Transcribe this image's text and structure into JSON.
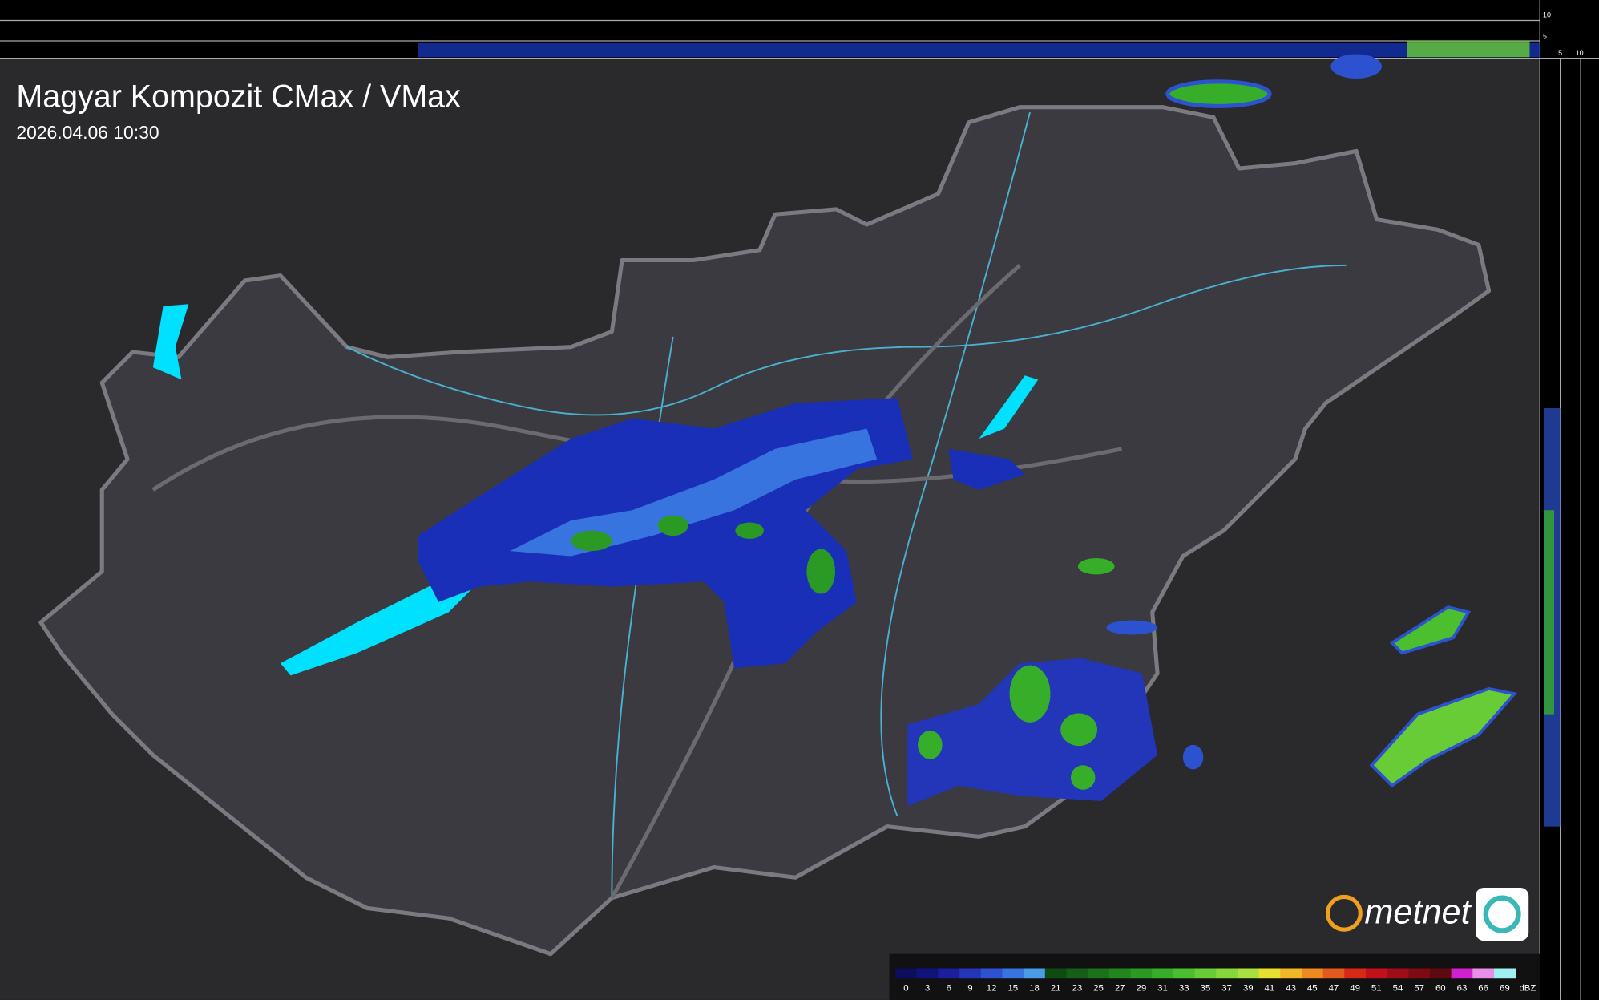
{
  "header": {
    "title": "Magyar Kompozit CMax / VMax",
    "timestamp": "2026.04.06 10:30"
  },
  "profile_axis": {
    "top_labels": [
      10,
      5
    ],
    "side_labels": [
      5,
      10
    ]
  },
  "logo": {
    "text": "metnet"
  },
  "legend": {
    "labels": [
      0,
      3,
      6,
      9,
      12,
      15,
      18,
      21,
      23,
      25,
      27,
      29,
      31,
      33,
      35,
      37,
      39,
      41,
      43,
      45,
      47,
      49,
      51,
      54,
      57,
      60,
      63,
      66,
      69
    ],
    "unit": "dBZ",
    "colors": [
      "#0d0d5e",
      "#10147a",
      "#1a1f9c",
      "#2335b8",
      "#2c52cf",
      "#3774e0",
      "#4a9be8",
      "#0f4a12",
      "#145e16",
      "#1a7219",
      "#21861e",
      "#2a9a24",
      "#36ae2a",
      "#4cbf30",
      "#68cc36",
      "#86d63c",
      "#a8e040",
      "#e8e030",
      "#f0b828",
      "#ee8a20",
      "#e45a1c",
      "#d82818",
      "#c01018",
      "#a00c18",
      "#800a14",
      "#600810",
      "#d020d0",
      "#e890e8",
      "#9ff0f0"
    ]
  }
}
